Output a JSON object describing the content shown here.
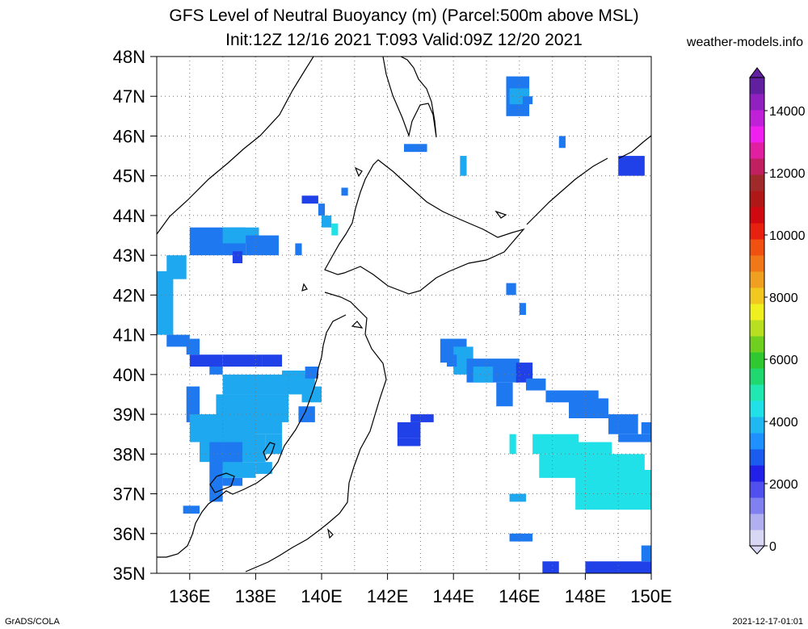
{
  "title_line1": "GFS Level of Neutral Buoyancy (m) (Parcel:500m above MSL)",
  "title_line2": "Init:12Z 12/16 2021 T:093 Valid:09Z 12/20 2021",
  "site": "weather-models.info",
  "footer_left": "GrADS/COLA",
  "footer_right": "2021-12-17-01:01",
  "lat_labels": [
    "48N",
    "47N",
    "46N",
    "45N",
    "44N",
    "43N",
    "42N",
    "41N",
    "40N",
    "39N",
    "38N",
    "37N",
    "36N",
    "35N"
  ],
  "lon_labels": [
    "136E",
    "138E",
    "140E",
    "142E",
    "144E",
    "146E",
    "148E",
    "150E"
  ],
  "colorbar": {
    "ticks": [
      "0",
      "2000",
      "4000",
      "6000",
      "8000",
      "10000",
      "12000",
      "14000"
    ],
    "colors": [
      "#d8d8f5",
      "#b0b0f0",
      "#8080f0",
      "#5050ee",
      "#2020e8",
      "#1a5cf0",
      "#1e90ff",
      "#20b8f0",
      "#20e0e8",
      "#20e8b0",
      "#20d870",
      "#30c830",
      "#70d020",
      "#b8e020",
      "#f0f020",
      "#f0c820",
      "#f0a020",
      "#f07818",
      "#f05010",
      "#e82010",
      "#d00810",
      "#b01818",
      "#a02a2a",
      "#c02060",
      "#e020a0",
      "#f020f0",
      "#c020d8",
      "#9020c0",
      "#6020a0"
    ]
  },
  "map": {
    "lon_range": [
      135,
      150
    ],
    "lat_range": [
      35,
      48
    ],
    "field_colors": {
      "dark": "#2040e8",
      "mid": "#1e78f0",
      "light": "#1ea8f0",
      "cyan": "#20e0e8"
    }
  }
}
